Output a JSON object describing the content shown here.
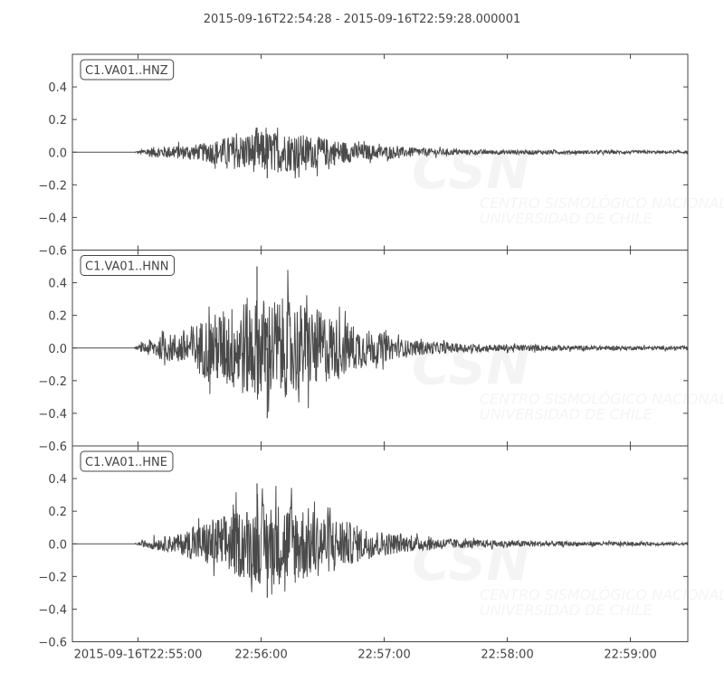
{
  "chart_data": {
    "type": "line",
    "title": "2015-09-16T22:54:28  -  2015-09-16T22:59:28.000001",
    "x_range": [
      "2015-09-16T22:54:28",
      "2015-09-16T22:59:28.000001"
    ],
    "x_ticks": [
      {
        "time": "22:55:00",
        "label": "2015-09-16T22:55:00"
      },
      {
        "time": "22:56:00",
        "label": "22:56:00"
      },
      {
        "time": "22:57:00",
        "label": "22:57:00"
      },
      {
        "time": "22:58:00",
        "label": "22:58:00"
      },
      {
        "time": "22:59:00",
        "label": "22:59:00"
      }
    ],
    "ylim": [
      -0.6,
      0.6
    ],
    "y_ticks": [
      0.4,
      0.2,
      0.0,
      -0.2,
      -0.4,
      -0.6
    ],
    "y_tick_labels": [
      "0.4",
      "0.2",
      "0.0",
      "−0.2",
      "−0.4",
      "−0.6"
    ],
    "grid": false,
    "line_color": "#4a4a4a",
    "watermark": {
      "logo": "CSN",
      "line1": "CENTRO SISMOLÓGICO NACIONAL",
      "line2": "UNIVERSIDAD DE CHILE"
    },
    "traces": [
      {
        "name": "C1.VA01..HNZ",
        "onset": "22:54:58",
        "max": 0.15,
        "min": -0.16,
        "envelope": [
          [
            "22:54:58",
            0.0
          ],
          [
            "22:55:05",
            0.03
          ],
          [
            "22:55:30",
            0.05
          ],
          [
            "22:55:45",
            0.1
          ],
          [
            "22:56:00",
            0.13
          ],
          [
            "22:56:15",
            0.12
          ],
          [
            "22:56:35",
            0.08
          ],
          [
            "22:56:50",
            0.05
          ],
          [
            "22:57:10",
            0.03
          ],
          [
            "22:57:40",
            0.015
          ],
          [
            "22:59:28",
            0.008
          ]
        ]
      },
      {
        "name": "C1.VA01..HNN",
        "onset": "22:54:58",
        "max": 0.5,
        "min": -0.43,
        "envelope": [
          [
            "22:54:58",
            0.0
          ],
          [
            "22:55:05",
            0.05
          ],
          [
            "22:55:20",
            0.1
          ],
          [
            "22:55:35",
            0.2
          ],
          [
            "22:55:55",
            0.32
          ],
          [
            "22:56:15",
            0.3
          ],
          [
            "22:56:35",
            0.2
          ],
          [
            "22:56:50",
            0.12
          ],
          [
            "22:57:10",
            0.05
          ],
          [
            "22:57:40",
            0.025
          ],
          [
            "22:58:30",
            0.015
          ],
          [
            "22:59:28",
            0.01
          ]
        ]
      },
      {
        "name": "C1.VA01..HNE",
        "onset": "22:54:58",
        "max": 0.37,
        "min": -0.33,
        "envelope": [
          [
            "22:54:58",
            0.0
          ],
          [
            "22:55:05",
            0.03
          ],
          [
            "22:55:20",
            0.06
          ],
          [
            "22:55:35",
            0.15
          ],
          [
            "22:56:00",
            0.25
          ],
          [
            "22:56:15",
            0.26
          ],
          [
            "22:56:35",
            0.17
          ],
          [
            "22:56:50",
            0.1
          ],
          [
            "22:57:10",
            0.05
          ],
          [
            "22:57:40",
            0.025
          ],
          [
            "22:58:30",
            0.015
          ],
          [
            "22:59:28",
            0.008
          ]
        ]
      }
    ]
  }
}
